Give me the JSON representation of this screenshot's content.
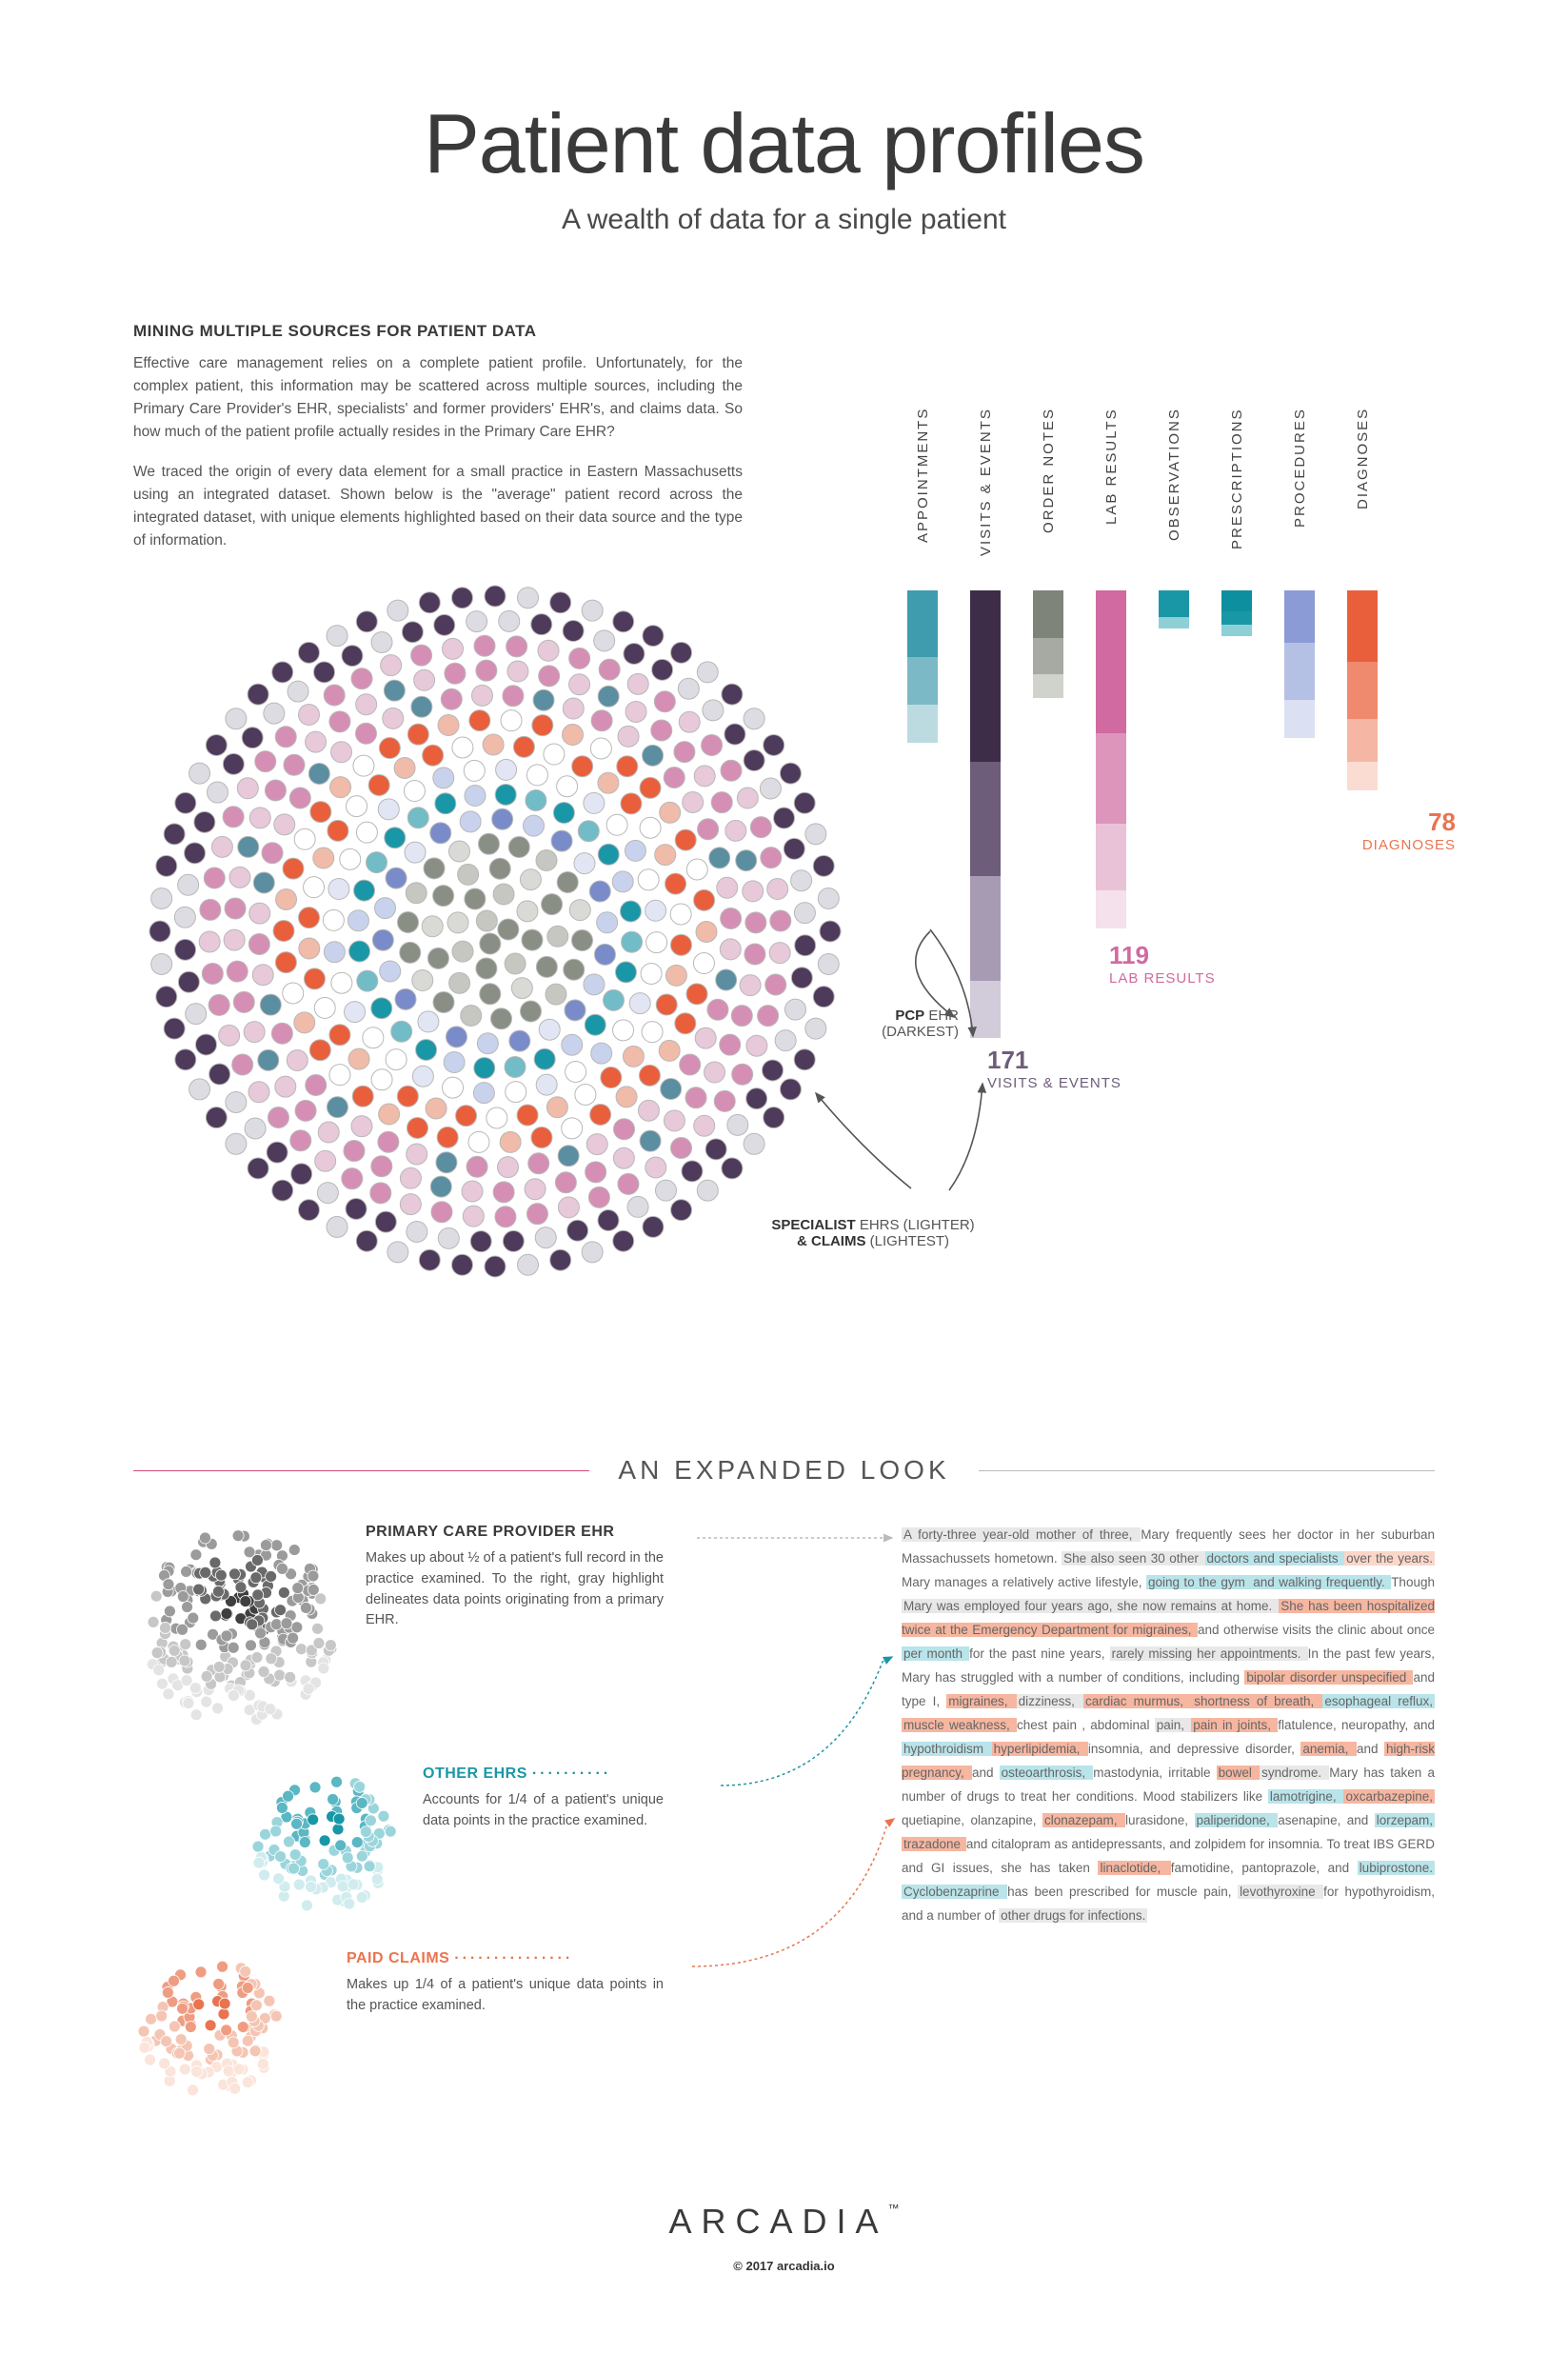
{
  "title": "Patient data profiles",
  "subtitle": "A wealth of data for a single patient",
  "intro": {
    "heading": "MINING MULTIPLE SOURCES FOR PATIENT DATA",
    "p1": "Effective care management relies on a complete patient profile. Unfortunately, for the complex patient, this information may be scattered across multiple sources, including the Primary Care Provider's EHR, specialists' and former providers' EHR's, and claims data. So how much of the patient profile actually resides in the Primary Care EHR?",
    "p2": "We traced the origin of every data element for a small practice in Eastern Massachusetts using an integrated dataset. Shown below is the \"average\" patient record across the integrated dataset, with unique elements highlighted based on their data source and the type of information."
  },
  "cluster": {
    "rings": [
      {
        "r": 352,
        "n": 64,
        "size": 11,
        "colors": [
          "#4e3a5a",
          "#dedce3",
          "#4e3a5a",
          "#dedce3",
          "#4e3a5a",
          "#4e3a5a"
        ]
      },
      {
        "r": 326,
        "n": 60,
        "size": 11,
        "colors": [
          "#4e3a5a",
          "#dedce3",
          "#dedce3",
          "#4e3a5a",
          "#4e3a5a",
          "#dedce3",
          "#4e3a5a"
        ]
      },
      {
        "r": 300,
        "n": 56,
        "size": 11,
        "colors": [
          "#d68fb4",
          "#e7c9d9",
          "#d68fb4",
          "#d68fb4",
          "#e7c9d9",
          "#d68fb4",
          "#e7c9d9",
          "#d68fb4"
        ]
      },
      {
        "r": 274,
        "n": 52,
        "size": 11,
        "colors": [
          "#d68fb4",
          "#e7c9d9",
          "#d68fb4",
          "#e7c9d9",
          "#5a8ea0",
          "#e7c9d9",
          "#d68fb4"
        ]
      },
      {
        "r": 248,
        "n": 48,
        "size": 11,
        "colors": [
          "#d68fb4",
          "#5a8ea0",
          "#e7c9d9",
          "#d68fb4",
          "#e7c9d9",
          "#5a8ea0",
          "#d68fb4",
          "#e7c9d9"
        ]
      },
      {
        "r": 222,
        "n": 42,
        "size": 11,
        "colors": [
          "#e95f3c",
          "#f0bba9",
          "#e95f3c",
          "#ffffff",
          "#e95f3c",
          "#f0bba9",
          "#ffffff",
          "#e95f3c"
        ]
      },
      {
        "r": 196,
        "n": 38,
        "size": 11,
        "colors": [
          "#e95f3c",
          "#ffffff",
          "#f0bba9",
          "#e95f3c",
          "#ffffff",
          "#e95f3c",
          "#f0bba9"
        ]
      },
      {
        "r": 170,
        "n": 32,
        "size": 11,
        "colors": [
          "#ffffff",
          "#e2e6f4",
          "#ffffff",
          "#c9d2ec",
          "#ffffff",
          "#e2e6f4",
          "#ffffff"
        ]
      },
      {
        "r": 144,
        "n": 28,
        "size": 11,
        "colors": [
          "#1a97a6",
          "#71bcc7",
          "#1a97a6",
          "#c9d2ec",
          "#1a97a6",
          "#71bcc7"
        ]
      },
      {
        "r": 118,
        "n": 22,
        "size": 11,
        "colors": [
          "#7a8bc9",
          "#c9d2ec",
          "#7a8bc9",
          "#e2e6f4",
          "#7a8bc9",
          "#c9d2ec"
        ]
      },
      {
        "r": 92,
        "n": 18,
        "size": 11,
        "colors": [
          "#8a8f85",
          "#c5c7c0",
          "#8a8f85",
          "#d9dad5",
          "#8a8f85"
        ]
      },
      {
        "r": 66,
        "n": 12,
        "size": 11,
        "colors": [
          "#8a8f85",
          "#c5c7c0",
          "#8a8f85",
          "#d9dad5"
        ]
      },
      {
        "r": 40,
        "n": 8,
        "size": 11,
        "colors": [
          "#8a8f85",
          "#c5c7c0",
          "#d9dad5"
        ]
      },
      {
        "r": 14,
        "n": 3,
        "size": 11,
        "colors": [
          "#8a8f85",
          "#c5c7c0"
        ]
      }
    ],
    "stroke": "#b8b8b8"
  },
  "bars": {
    "columns": [
      {
        "label": "APPOINTMENTS",
        "segs": [
          {
            "h": 70,
            "c": "#3f9caf"
          },
          {
            "h": 50,
            "c": "#7bb9c6"
          },
          {
            "h": 40,
            "c": "#bcdbe1"
          }
        ]
      },
      {
        "label": "VISITS & EVENTS",
        "segs": [
          {
            "h": 180,
            "c": "#3d2d49"
          },
          {
            "h": 120,
            "c": "#6d5d7a"
          },
          {
            "h": 110,
            "c": "#a79bb3"
          },
          {
            "h": 60,
            "c": "#d2cbda"
          }
        ]
      },
      {
        "label": "ORDER NOTES",
        "segs": [
          {
            "h": 50,
            "c": "#7f847a"
          },
          {
            "h": 38,
            "c": "#a7aaa2"
          },
          {
            "h": 25,
            "c": "#d0d2cc"
          }
        ]
      },
      {
        "label": "LAB RESULTS",
        "segs": [
          {
            "h": 150,
            "c": "#d06aa0"
          },
          {
            "h": 95,
            "c": "#dd95bc"
          },
          {
            "h": 70,
            "c": "#eac2d7"
          },
          {
            "h": 40,
            "c": "#f4e1eb"
          }
        ]
      },
      {
        "label": "OBSERVATIONS",
        "segs": [
          {
            "h": 28,
            "c": "#1a97a6"
          },
          {
            "h": 12,
            "c": "#8fd0d7"
          }
        ]
      },
      {
        "label": "PRESCRIPTIONS",
        "segs": [
          {
            "h": 22,
            "c": "#0e8fa0"
          },
          {
            "h": 14,
            "c": "#1a97a6"
          },
          {
            "h": 12,
            "c": "#8fd0d7"
          }
        ]
      },
      {
        "label": "PROCEDURES",
        "segs": [
          {
            "h": 55,
            "c": "#8a9bd6"
          },
          {
            "h": 60,
            "c": "#b5c0e5"
          },
          {
            "h": 40,
            "c": "#dbe0f2"
          }
        ]
      },
      {
        "label": "DIAGNOSES",
        "segs": [
          {
            "h": 75,
            "c": "#e95f3c"
          },
          {
            "h": 60,
            "c": "#ef8a6e"
          },
          {
            "h": 45,
            "c": "#f5b6a3"
          },
          {
            "h": 30,
            "c": "#fadcd2"
          }
        ]
      }
    ]
  },
  "callouts": {
    "diagnoses": {
      "num": "78",
      "label": "DIAGNOSES",
      "color": "#e9744f"
    },
    "labs": {
      "num": "119",
      "label": "LAB RESULTS",
      "color": "#d06aa0"
    },
    "visits": {
      "num": "171",
      "label": "VISITS & EVENTS",
      "color": "#6d5d7a"
    },
    "pcp_dark": {
      "b": "PCP",
      "rest": " EHR",
      "sub": "(DARKEST)"
    },
    "specialist": {
      "b": "SPECIALIST",
      "rest": " EHRS (LIGHTER)",
      "line2b": "& CLAIMS",
      "line2rest": " (LIGHTEST)"
    }
  },
  "expanded_heading": "AN EXPANDED LOOK",
  "expanded": {
    "pcp": {
      "title": "PRIMARY CARE PROVIDER EHR",
      "body": "Makes up about ½ of a patient's full record in the practice examined. To the right, gray highlight delineates data points originating from a primary EHR.",
      "color": "#9b9b9b",
      "cluster_colors": [
        "#3f3f3f",
        "#6a6a6a",
        "#9b9b9b",
        "#c7c7c7",
        "#e4e4e4"
      ]
    },
    "other": {
      "title": "OTHER EHRS",
      "body": "Accounts for 1/4 of a patient's unique data points in the practice examined.",
      "color": "#1a97a6",
      "cluster_colors": [
        "#1a97a6",
        "#5ab7c3",
        "#9ad5dc",
        "#d0ecef"
      ]
    },
    "claims": {
      "title": "PAID CLAIMS",
      "body": "Makes up 1/4 of a patient's unique data points in the practice examined.",
      "color": "#e9744f",
      "cluster_colors": [
        "#e9744f",
        "#ef9d82",
        "#f5c5b4",
        "#fbe4da"
      ]
    }
  },
  "narrative": {
    "segments": [
      {
        "t": "A forty-three year-old mother of three, ",
        "c": "#e8e8e8"
      },
      {
        "t": "Mary frequently sees her doctor in her suburban Massachussets hometown. "
      },
      {
        "t": "She also seen 30 other ",
        "c": "#e8e8e8"
      },
      {
        "t": "doctors and specialists ",
        "c": "#b9e4ea"
      },
      {
        "t": "over the years. ",
        "c": "#fbd6c9"
      },
      {
        "t": "Mary manages a relatively active lifestyle, "
      },
      {
        "t": "going to the gym ",
        "c": "#b9e4ea"
      },
      {
        "t": "and walking frequently. ",
        "c": "#b9e4ea"
      },
      {
        "t": "Though "
      },
      {
        "t": "Mary was employed four years ago, she now remains at home. ",
        "c": "#e8e8e8"
      },
      {
        "t": "She has been hospitalized twice at the Emergency Department for migraines, ",
        "c": "#f6b6a0"
      },
      {
        "t": "and otherwise visits the clinic about once "
      },
      {
        "t": "per month ",
        "c": "#b9e4ea"
      },
      {
        "t": "for the past nine years, "
      },
      {
        "t": "rarely missing her appointments. ",
        "c": "#e8e8e8"
      },
      {
        "t": "In the past few years, Mary has struggled with a number of conditions, including "
      },
      {
        "t": "bipolar disorder unspecified ",
        "c": "#f6b6a0"
      },
      {
        "t": "and type I, "
      },
      {
        "t": "migraines, ",
        "c": "#f6b6a0"
      },
      {
        "t": "dizziness, ",
        "c": "#e8e8e8"
      },
      {
        "t": "cardiac murmus, ",
        "c": "#f6b6a0"
      },
      {
        "t": "shortness of breath, ",
        "c": "#f6b6a0"
      },
      {
        "t": "esophageal reflux, ",
        "c": "#b9e4ea"
      },
      {
        "t": "muscle weakness, ",
        "c": "#f6b6a0"
      },
      {
        "t": "chest pain , abdominal "
      },
      {
        "t": "pain, ",
        "c": "#e8e8e8"
      },
      {
        "t": "pain in joints, ",
        "c": "#f6b6a0"
      },
      {
        "t": "flatulence, neuropathy, and "
      },
      {
        "t": "hypothroidism ",
        "c": "#b9e4ea"
      },
      {
        "t": "hyperlipidemia, ",
        "c": "#f6b6a0"
      },
      {
        "t": "insomnia, and depressive disorder, "
      },
      {
        "t": "anemia, ",
        "c": "#f6b6a0"
      },
      {
        "t": "and "
      },
      {
        "t": "high-risk pregnancy, ",
        "c": "#f6b6a0"
      },
      {
        "t": "and "
      },
      {
        "t": "osteoarthrosis, ",
        "c": "#b9e4ea"
      },
      {
        "t": "mastodynia, irritable "
      },
      {
        "t": "bowel ",
        "c": "#f6b6a0"
      },
      {
        "t": "syndrome. ",
        "c": "#e8e8e8"
      },
      {
        "t": "Mary has taken a number of drugs to treat her conditions. Mood stabilizers like "
      },
      {
        "t": "lamotrigine, ",
        "c": "#b9e4ea"
      },
      {
        "t": "oxcarbazepine, ",
        "c": "#f6b6a0"
      },
      {
        "t": "quetiapine, olanzapine, "
      },
      {
        "t": "clonazepam, ",
        "c": "#f6b6a0"
      },
      {
        "t": "lurasidone, "
      },
      {
        "t": "paliperidone, ",
        "c": "#b9e4ea"
      },
      {
        "t": "asenapine, and "
      },
      {
        "t": "lorzepam, ",
        "c": "#b9e4ea"
      },
      {
        "t": "trazadone ",
        "c": "#f6b6a0"
      },
      {
        "t": "and citalopram as antidepressants, and zolpidem for insomnia. To treat IBS GERD and GI issues, she has taken "
      },
      {
        "t": "linaclotide, ",
        "c": "#f6b6a0"
      },
      {
        "t": "famotidine, pantoprazole, and "
      },
      {
        "t": "lubiprostone. ",
        "c": "#b9e4ea"
      },
      {
        "t": "Cyclobenzaprine ",
        "c": "#b9e4ea"
      },
      {
        "t": "has been prescribed for muscle pain, "
      },
      {
        "t": "levothyroxine ",
        "c": "#e8e8e8"
      },
      {
        "t": "for hypothyroidism, and a number of "
      },
      {
        "t": "other drugs for infections.",
        "c": "#e8e8e8"
      }
    ]
  },
  "footer": {
    "brand": "ARCADIA",
    "tm": "™",
    "copy": "© 2017 arcadia.io"
  }
}
